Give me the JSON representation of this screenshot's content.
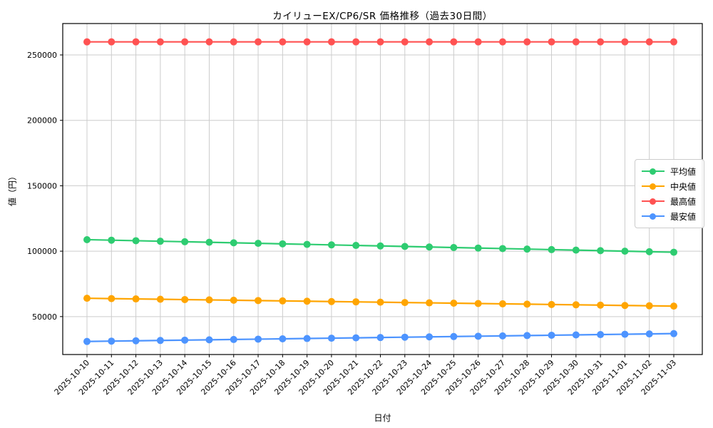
{
  "chart_data": {
    "type": "line",
    "title": "カイリューEX/CP6/SR 価格推移（過去30日間）",
    "xlabel": "日付",
    "ylabel": "値（円）",
    "grid": true,
    "legend_position": "right",
    "ylim": [
      21000,
      274000
    ],
    "yticks": [
      50000,
      100000,
      150000,
      200000,
      250000
    ],
    "categories": [
      "2025-10-10",
      "2025-10-11",
      "2025-10-12",
      "2025-10-13",
      "2025-10-14",
      "2025-10-15",
      "2025-10-16",
      "2025-10-17",
      "2025-10-18",
      "2025-10-19",
      "2025-10-20",
      "2025-10-21",
      "2025-10-22",
      "2025-10-23",
      "2025-10-24",
      "2025-10-25",
      "2025-10-26",
      "2025-10-27",
      "2025-10-28",
      "2025-10-29",
      "2025-10-30",
      "2025-10-31",
      "2025-11-01",
      "2025-11-02",
      "2025-11-03"
    ],
    "series": [
      {
        "key": "average",
        "name": "平均値",
        "color": "#2ecc71",
        "values": [
          108800,
          108400,
          108000,
          107600,
          107200,
          106800,
          106400,
          106000,
          105600,
          105200,
          104800,
          104400,
          104000,
          103600,
          103200,
          102800,
          102400,
          102000,
          101600,
          101200,
          100800,
          100400,
          100000,
          99600,
          99200
        ]
      },
      {
        "key": "median",
        "name": "中央値",
        "color": "#ffa500",
        "values": [
          64000,
          63750,
          63500,
          63250,
          63000,
          62750,
          62500,
          62250,
          62000,
          61750,
          61500,
          61250,
          61000,
          60750,
          60500,
          60250,
          60000,
          59750,
          59500,
          59250,
          59000,
          58750,
          58500,
          58250,
          58000
        ]
      },
      {
        "key": "max",
        "name": "最高値",
        "color": "#ff5252",
        "values": [
          260000,
          260000,
          260000,
          260000,
          260000,
          260000,
          260000,
          260000,
          260000,
          260000,
          260000,
          260000,
          260000,
          260000,
          260000,
          260000,
          260000,
          260000,
          260000,
          260000,
          260000,
          260000,
          260000,
          260000,
          260000
        ]
      },
      {
        "key": "min",
        "name": "最安値",
        "color": "#4d94ff",
        "values": [
          31000,
          31250,
          31500,
          31750,
          32000,
          32250,
          32500,
          32750,
          33000,
          33250,
          33500,
          33750,
          34000,
          34250,
          34500,
          34750,
          35000,
          35250,
          35500,
          35750,
          36000,
          36250,
          36500,
          36750,
          37000
        ]
      }
    ],
    "colors": {
      "grid": "#cccccc",
      "axis": "#000000",
      "background": "#ffffff"
    }
  }
}
